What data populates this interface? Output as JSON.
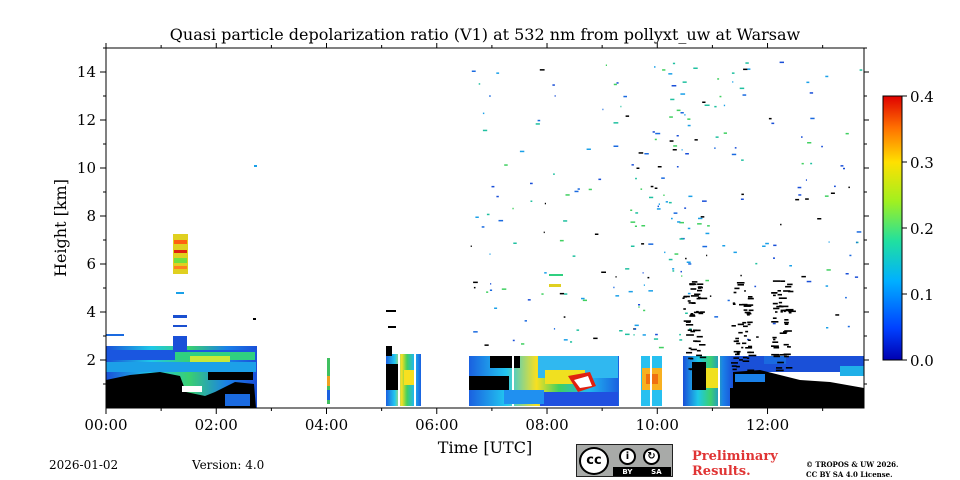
{
  "chart_data": {
    "type": "heatmap",
    "title": "Quasi particle depolarization ratio (V1) at 532 nm from pollyxt_uw at Warsaw",
    "xlabel": "Time [UTC]",
    "ylabel": "Height [km]",
    "xlim": [
      0,
      13.75
    ],
    "ylim": [
      0,
      15
    ],
    "x_ticks": [
      0,
      2,
      4,
      6,
      8,
      10,
      12
    ],
    "x_tick_labels": [
      "00:00",
      "02:00",
      "04:00",
      "06:00",
      "08:00",
      "10:00",
      "12:00"
    ],
    "y_ticks": [
      2,
      4,
      6,
      8,
      10,
      12,
      14
    ],
    "y_tick_labels": [
      "2",
      "4",
      "6",
      "8",
      "10",
      "12",
      "14"
    ],
    "colorbar": {
      "min": 0.0,
      "max": 0.4,
      "ticks": [
        0.0,
        0.1,
        0.2,
        0.3,
        0.4
      ],
      "tick_labels": [
        "0.0",
        "0.1",
        "0.2",
        "0.3",
        "0.4"
      ],
      "colormap": "jet"
    },
    "regions": [
      {
        "x": [
          0,
          2.75
        ],
        "y": [
          1.4,
          2.6
        ],
        "value": 0.12
      },
      {
        "x": [
          0,
          1.3
        ],
        "y": [
          0,
          1.5
        ],
        "value": "no-data"
      },
      {
        "x": [
          1.35,
          2.75
        ],
        "y": [
          0.2,
          1.6
        ],
        "value": 0.08
      },
      {
        "x": [
          1.2,
          1.4
        ],
        "y": [
          5.8,
          7.3
        ],
        "value": 0.25
      },
      {
        "x": [
          1.2,
          1.4
        ],
        "y": [
          2.4,
          4.0
        ],
        "value": 0.05
      },
      {
        "x": [
          4.0,
          4.05
        ],
        "y": [
          0.3,
          2.1
        ],
        "value": 0.2
      },
      {
        "x": [
          5.2,
          5.8
        ],
        "y": [
          0.2,
          2.3
        ],
        "value": 0.18
      },
      {
        "x": [
          6.7,
          9.4
        ],
        "y": [
          0.2,
          2.3
        ],
        "value": 0.14
      },
      {
        "x": [
          8.2,
          8.8
        ],
        "y": [
          0.5,
          1.4
        ],
        "value": 0.32
      },
      {
        "x": [
          9.7,
          10.1
        ],
        "y": [
          0.3,
          2.2
        ],
        "value": 0.25
      },
      {
        "x": [
          10.5,
          11.1
        ],
        "y": [
          0.2,
          2.0
        ],
        "value": 0.12
      },
      {
        "x": [
          11.1,
          13.75
        ],
        "y": [
          0.0,
          1.7
        ],
        "value": "no-data"
      },
      {
        "x": [
          11.0,
          13.75
        ],
        "y": [
          1.2,
          2.0
        ],
        "value": 0.08
      }
    ]
  },
  "footer": {
    "date": "2026-01-02",
    "version": "Version: 4.0",
    "preliminary": "Preliminary Results.",
    "copyright_line1": "© TROPOS & UW 2026.",
    "copyright_line2": "CC BY SA 4.0 License.",
    "cc_label": "cc",
    "cc_by": "BY",
    "cc_sa": "SA"
  }
}
